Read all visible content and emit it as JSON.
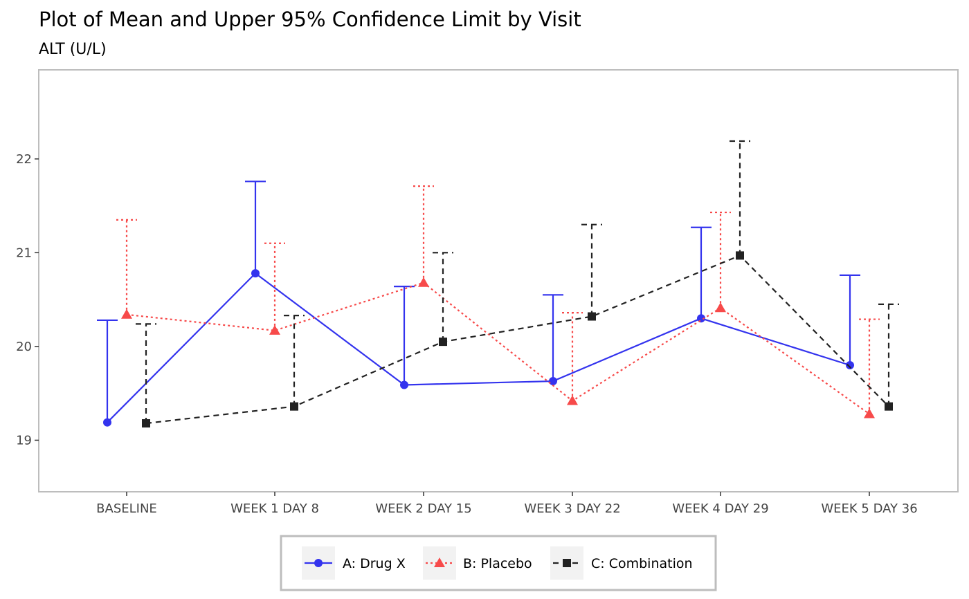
{
  "chart_data": {
    "type": "line",
    "title": "Plot of Mean and Upper 95% Confidence Limit by Visit",
    "subtitle": "ALT (U/L)",
    "xlabel": "",
    "ylabel": "",
    "categories": [
      "BASELINE",
      "WEEK 1 DAY 8",
      "WEEK 2 DAY 15",
      "WEEK 3 DAY 22",
      "WEEK 4 DAY 29",
      "WEEK 5 DAY 36"
    ],
    "ylim": [
      18.45,
      22.95
    ],
    "yticks": [
      19,
      20,
      21,
      22
    ],
    "grid": false,
    "legend_position": "bottom",
    "series": [
      {
        "name": "A: Drug X",
        "color": "#3333ee",
        "line": "solid",
        "marker": "circle",
        "mean": [
          19.19,
          20.78,
          19.59,
          19.63,
          20.3,
          19.8
        ],
        "upper_cl": [
          20.28,
          21.76,
          20.64,
          20.55,
          21.27,
          20.76
        ]
      },
      {
        "name": "B: Placebo",
        "color": "#f74a4a",
        "line": "dotted",
        "marker": "triangle",
        "mean": [
          20.34,
          20.17,
          20.68,
          19.42,
          20.41,
          19.28
        ],
        "upper_cl": [
          21.35,
          21.1,
          21.71,
          20.36,
          21.43,
          20.29
        ]
      },
      {
        "name": "C: Combination",
        "color": "#222222",
        "line": "dashed",
        "marker": "square",
        "mean": [
          19.18,
          19.36,
          20.05,
          20.32,
          20.97,
          19.36
        ],
        "upper_cl": [
          20.24,
          20.33,
          21.0,
          21.3,
          22.19,
          20.45
        ]
      }
    ]
  }
}
